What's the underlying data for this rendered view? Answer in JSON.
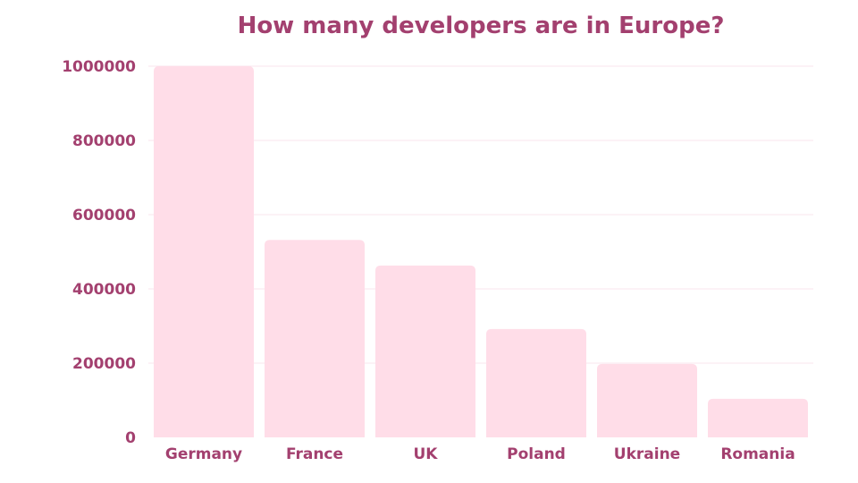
{
  "chart_data": {
    "type": "bar",
    "title": "How many developers are in Europe?",
    "xlabel": "",
    "ylabel": "",
    "categories": [
      "Germany",
      "France",
      "UK",
      "Poland",
      "Ukraine",
      "Romania"
    ],
    "values": [
      1000000,
      532000,
      463000,
      292000,
      198000,
      104000
    ],
    "ylim": [
      0,
      1000000
    ],
    "yticks": [
      "0",
      "200000",
      "400000",
      "600000",
      "800000",
      "1000000"
    ],
    "grid": true,
    "colors": {
      "bar": "#ffdde8",
      "text": "#a3406f",
      "grid": "#f8e6ee"
    }
  }
}
